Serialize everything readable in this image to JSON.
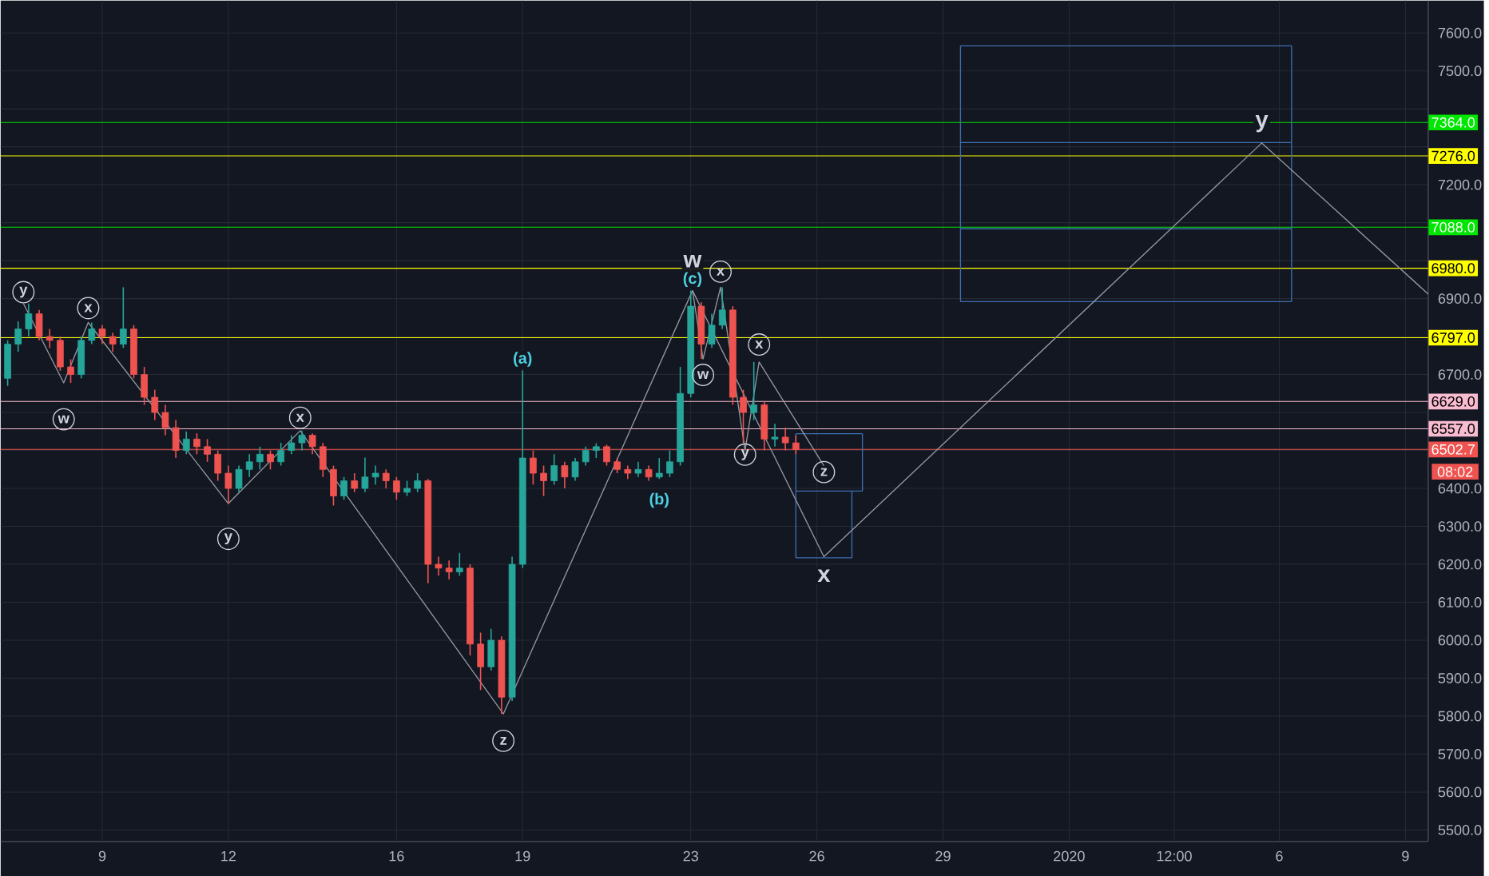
{
  "chart_data": {
    "type": "candlestick",
    "x": [
      "2019-12-06T18:00",
      "2019-12-07T00:00",
      "2019-12-07T06:00",
      "2019-12-07T12:00",
      "2019-12-07T18:00",
      "2019-12-08T00:00",
      "2019-12-08T06:00",
      "2019-12-08T12:00",
      "2019-12-08T18:00",
      "2019-12-09T00:00",
      "2019-12-09T06:00",
      "2019-12-09T12:00",
      "2019-12-09T18:00",
      "2019-12-10T00:00",
      "2019-12-10T06:00",
      "2019-12-10T12:00",
      "2019-12-10T18:00",
      "2019-12-11T00:00",
      "2019-12-11T06:00",
      "2019-12-11T12:00",
      "2019-12-11T18:00",
      "2019-12-12T00:00",
      "2019-12-12T06:00",
      "2019-12-12T12:00",
      "2019-12-12T18:00",
      "2019-12-13T00:00",
      "2019-12-13T06:00",
      "2019-12-13T12:00",
      "2019-12-13T18:00",
      "2019-12-14T00:00",
      "2019-12-14T06:00",
      "2019-12-14T12:00",
      "2019-12-14T18:00",
      "2019-12-15T00:00",
      "2019-12-15T06:00",
      "2019-12-15T12:00",
      "2019-12-15T18:00",
      "2019-12-16T00:00",
      "2019-12-16T06:00",
      "2019-12-16T12:00",
      "2019-12-16T18:00",
      "2019-12-17T00:00",
      "2019-12-17T06:00",
      "2019-12-17T12:00",
      "2019-12-17T18:00",
      "2019-12-18T00:00",
      "2019-12-18T06:00",
      "2019-12-18T12:00",
      "2019-12-18T18:00",
      "2019-12-19T00:00",
      "2019-12-19T06:00",
      "2019-12-19T12:00",
      "2019-12-19T18:00",
      "2019-12-20T00:00",
      "2019-12-20T06:00",
      "2019-12-20T12:00",
      "2019-12-20T18:00",
      "2019-12-21T00:00",
      "2019-12-21T06:00",
      "2019-12-21T12:00",
      "2019-12-21T18:00",
      "2019-12-22T00:00",
      "2019-12-22T06:00",
      "2019-12-22T12:00",
      "2019-12-22T18:00",
      "2019-12-23T00:00",
      "2019-12-23T06:00",
      "2019-12-23T12:00",
      "2019-12-23T18:00",
      "2019-12-24T00:00",
      "2019-12-24T06:00",
      "2019-12-24T12:00",
      "2019-12-24T18:00",
      "2019-12-25T00:00",
      "2019-12-25T06:00",
      "2019-12-25T12:00"
    ],
    "ohlc": [
      [
        6690,
        6790,
        6670,
        6780
      ],
      [
        6780,
        6840,
        6760,
        6820
      ],
      [
        6820,
        6887,
        6800,
        6860
      ],
      [
        6860,
        6870,
        6790,
        6800
      ],
      [
        6800,
        6820,
        6770,
        6790
      ],
      [
        6790,
        6800,
        6710,
        6720
      ],
      [
        6720,
        6740,
        6678,
        6700
      ],
      [
        6700,
        6800,
        6690,
        6790
      ],
      [
        6790,
        6837,
        6780,
        6820
      ],
      [
        6820,
        6830,
        6780,
        6800
      ],
      [
        6800,
        6810,
        6760,
        6780
      ],
      [
        6780,
        6930,
        6770,
        6820
      ],
      [
        6820,
        6830,
        6690,
        6700
      ],
      [
        6700,
        6720,
        6620,
        6640
      ],
      [
        6640,
        6660,
        6580,
        6600
      ],
      [
        6600,
        6620,
        6540,
        6560
      ],
      [
        6560,
        6580,
        6480,
        6500
      ],
      [
        6500,
        6550,
        6490,
        6530
      ],
      [
        6530,
        6545,
        6490,
        6510
      ],
      [
        6510,
        6530,
        6470,
        6490
      ],
      [
        6490,
        6500,
        6420,
        6440
      ],
      [
        6440,
        6460,
        6360,
        6400
      ],
      [
        6400,
        6460,
        6390,
        6450
      ],
      [
        6450,
        6490,
        6430,
        6470
      ],
      [
        6470,
        6510,
        6450,
        6490
      ],
      [
        6490,
        6500,
        6450,
        6470
      ],
      [
        6470,
        6520,
        6460,
        6500
      ],
      [
        6500,
        6540,
        6490,
        6520
      ],
      [
        6520,
        6552,
        6500,
        6540
      ],
      [
        6540,
        6545,
        6490,
        6510
      ],
      [
        6510,
        6520,
        6430,
        6450
      ],
      [
        6450,
        6460,
        6355,
        6380
      ],
      [
        6380,
        6430,
        6370,
        6420
      ],
      [
        6420,
        6440,
        6390,
        6400
      ],
      [
        6400,
        6481,
        6390,
        6430
      ],
      [
        6430,
        6460,
        6410,
        6440
      ],
      [
        6440,
        6450,
        6400,
        6420
      ],
      [
        6420,
        6430,
        6370,
        6390
      ],
      [
        6390,
        6420,
        6380,
        6400
      ],
      [
        6400,
        6440,
        6390,
        6420
      ],
      [
        6420,
        6425,
        6150,
        6200
      ],
      [
        6200,
        6220,
        6170,
        6190
      ],
      [
        6190,
        6210,
        6160,
        6180
      ],
      [
        6180,
        6230,
        6170,
        6190
      ],
      [
        6190,
        6200,
        5960,
        5990
      ],
      [
        5990,
        6020,
        5869,
        5930
      ],
      [
        5930,
        6030,
        5920,
        6000
      ],
      [
        6000,
        6010,
        5806,
        5850
      ],
      [
        5850,
        6220,
        5840,
        6200
      ],
      [
        6200,
        6711,
        6190,
        6480
      ],
      [
        6480,
        6500,
        6410,
        6440
      ],
      [
        6440,
        6460,
        6380,
        6420
      ],
      [
        6420,
        6490,
        6410,
        6460
      ],
      [
        6460,
        6470,
        6400,
        6430
      ],
      [
        6430,
        6480,
        6420,
        6470
      ],
      [
        6470,
        6510,
        6460,
        6500
      ],
      [
        6500,
        6519,
        6480,
        6510
      ],
      [
        6510,
        6515,
        6460,
        6470
      ],
      [
        6470,
        6480,
        6440,
        6450
      ],
      [
        6450,
        6460,
        6425,
        6440
      ],
      [
        6440,
        6470,
        6430,
        6450
      ],
      [
        6450,
        6460,
        6420,
        6430
      ],
      [
        6430,
        6480,
        6425,
        6440
      ],
      [
        6440,
        6500,
        6430,
        6470
      ],
      [
        6470,
        6720,
        6460,
        6650
      ],
      [
        6650,
        6921,
        6640,
        6880
      ],
      [
        6880,
        6890,
        6741,
        6780
      ],
      [
        6780,
        6860,
        6770,
        6830
      ],
      [
        6830,
        6930,
        6820,
        6870
      ],
      [
        6870,
        6880,
        6620,
        6640
      ],
      [
        6640,
        6660,
        6520,
        6600
      ],
      [
        6600,
        6733,
        6580,
        6620
      ],
      [
        6620,
        6630,
        6500,
        6530
      ],
      [
        6530,
        6570,
        6510,
        6535
      ],
      [
        6535,
        6560,
        6500,
        6520
      ],
      [
        6520,
        6540,
        6490,
        6502.7
      ]
    ],
    "colors": [
      "#26a69a",
      "#26a69a",
      "#26a69a",
      "#ef5350",
      "#ef5350",
      "#ef5350",
      "#ef5350",
      "#26a69a",
      "#26a69a",
      "#ef5350",
      "#ef5350",
      "#26a69a",
      "#ef5350",
      "#ef5350",
      "#ef5350",
      "#ef5350",
      "#ef5350",
      "#26a69a",
      "#ef5350",
      "#ef5350",
      "#ef5350",
      "#ef5350",
      "#26a69a",
      "#26a69a",
      "#26a69a",
      "#ef5350",
      "#26a69a",
      "#26a69a",
      "#26a69a",
      "#ef5350",
      "#ef5350",
      "#ef5350",
      "#26a69a",
      "#ef5350",
      "#26a69a",
      "#26a69a",
      "#ef5350",
      "#ef5350",
      "#26a69a",
      "#26a69a",
      "#ef5350",
      "#ef5350",
      "#ef5350",
      "#26a69a",
      "#ef5350",
      "#ef5350",
      "#26a69a",
      "#ef5350",
      "#26a69a",
      "#26a69a",
      "#ef5350",
      "#ef5350",
      "#26a69a",
      "#ef5350",
      "#26a69a",
      "#26a69a",
      "#26a69a",
      "#ef5350",
      "#ef5350",
      "#ef5350",
      "#26a69a",
      "#ef5350",
      "#26a69a",
      "#26a69a",
      "#26a69a",
      "#26a69a",
      "#ef5350",
      "#26a69a",
      "#26a69a",
      "#ef5350",
      "#ef5350",
      "#26a69a",
      "#ef5350",
      "#26a69a",
      "#ef5350",
      "#ef5350"
    ],
    "series": [
      {
        "type": "line",
        "color": "#9598a1",
        "x": [
          "2019-12-07T03:00",
          "2019-12-08T02:00",
          "2019-12-08T16:00",
          "2019-12-12T00:00",
          "2019-12-13T17:00",
          "2019-12-18T13:00",
          "2019-12-23T01:00",
          "2019-12-26T04:00",
          "2020-01-05T14:00",
          "2020-01-09T13:00"
        ],
        "values": [
          6887,
          6678,
          6837,
          6360,
          6552,
          5806,
          6921,
          6220,
          7310,
          6912
        ]
      },
      {
        "type": "line",
        "color": "#9598a1",
        "x": [
          "2019-12-23T01:00",
          "2019-12-23T07:00",
          "2019-12-23T17:00",
          "2019-12-24T07:00",
          "2019-12-24T15:00",
          "2019-12-26T04:00"
        ],
        "values": [
          6921,
          6741,
          6930,
          6500,
          6733,
          6460
        ]
      },
      {
        "type": "line",
        "color": "#3d6fb0",
        "x": [
          "2019-12-29T10:00",
          "2020-01-06T07:00"
        ],
        "values": [
          7566,
          7566
        ]
      },
      {
        "type": "line",
        "color": "#3d6fb0",
        "x": [
          "2019-12-29T10:00",
          "2020-01-06T07:00"
        ],
        "values": [
          7311,
          7311
        ]
      },
      {
        "type": "line",
        "color": "#3d6fb0",
        "x": [
          "2019-12-29T10:00",
          "2020-01-06T07:00"
        ],
        "values": [
          7084,
          7084
        ]
      },
      {
        "type": "line",
        "color": "#3d6fb0",
        "x": [
          "2019-12-29T10:00",
          "2020-01-06T07:00"
        ],
        "values": [
          6892,
          6892
        ]
      },
      {
        "type": "line",
        "color": "#3d6fb0",
        "x": [
          "2019-12-25T12:00",
          "2019-12-27T02:00"
        ],
        "values": [
          6544,
          6544
        ]
      },
      {
        "type": "line",
        "color": "#3d6fb0",
        "x": [
          "2019-12-25T12:00",
          "2019-12-27T02:00"
        ],
        "values": [
          6393,
          6393
        ]
      },
      {
        "type": "line",
        "color": "#3d6fb0",
        "x": [
          "2019-12-25T12:00",
          "2019-12-26T20:00"
        ],
        "values": [
          6217,
          6217
        ]
      },
      {
        "type": "line",
        "color": "#3d6fb0",
        "x": [
          "2019-12-29T10:00",
          "2019-12-29T10:00"
        ],
        "values": [
          6892,
          7566
        ]
      },
      {
        "type": "line",
        "color": "#3d6fb0",
        "x": [
          "2020-01-06T07:00",
          "2020-01-06T07:00"
        ],
        "values": [
          6892,
          7566
        ]
      },
      {
        "type": "line",
        "color": "#3d6fb0",
        "x": [
          "2019-12-25T12:00",
          "2019-12-25T12:00"
        ],
        "values": [
          6217,
          6544
        ]
      },
      {
        "type": "line",
        "color": "#3d6fb0",
        "x": [
          "2019-12-27T02:00",
          "2019-12-27T02:00"
        ],
        "values": [
          6393,
          6544
        ]
      },
      {
        "type": "line",
        "color": "#3d6fb0",
        "x": [
          "2019-12-26T20:00",
          "2019-12-26T20:00"
        ],
        "values": [
          6217,
          6393
        ]
      }
    ],
    "xlim": [
      "2019-12-06T14:00",
      "2020-01-09T13:00"
    ],
    "ylim": [
      5470,
      7685
    ],
    "xticks": [
      {
        "value": "2019-12-09",
        "label": "9"
      },
      {
        "value": "2019-12-12",
        "label": "12"
      },
      {
        "value": "2019-12-16",
        "label": "16"
      },
      {
        "value": "2019-12-19",
        "label": "19"
      },
      {
        "value": "2019-12-23",
        "label": "23"
      },
      {
        "value": "2019-12-26",
        "label": "26"
      },
      {
        "value": "2019-12-29",
        "label": "29"
      },
      {
        "value": "2020-01-01",
        "label": "2020"
      },
      {
        "value": "2020-01-03T12:00",
        "label": "12:00"
      },
      {
        "value": "2020-01-06",
        "label": "6"
      },
      {
        "value": "2020-01-09",
        "label": "9"
      }
    ],
    "yticks": [
      {
        "value": 5500,
        "label": "5500.0"
      },
      {
        "value": 5600,
        "label": "5600.0"
      },
      {
        "value": 5700,
        "label": "5700.0"
      },
      {
        "value": 5800,
        "label": "5800.0"
      },
      {
        "value": 5900,
        "label": "5900.0"
      },
      {
        "value": 6000,
        "label": "6000.0"
      },
      {
        "value": 6100,
        "label": "6100.0"
      },
      {
        "value": 6200,
        "label": "6200.0"
      },
      {
        "value": 6300,
        "label": "6300.0"
      },
      {
        "value": 6400,
        "label": "6400.0"
      },
      {
        "value": 6500,
        "label": null
      },
      {
        "value": 6600,
        "label": null
      },
      {
        "value": 6700,
        "label": "6700.0"
      },
      {
        "value": 6800,
        "label": null
      },
      {
        "value": 6900,
        "label": "6900.0"
      },
      {
        "value": 7000,
        "label": null
      },
      {
        "value": 7100,
        "label": null
      },
      {
        "value": 7200,
        "label": "7200.0"
      },
      {
        "value": 7300,
        "label": null
      },
      {
        "value": 7400,
        "label": null
      },
      {
        "value": 7500,
        "label": "7500.0"
      },
      {
        "value": 7600,
        "label": "7600.0"
      }
    ],
    "grid": true,
    "ref_lines": [
      {
        "axis": "y",
        "value": 7364,
        "label": "7364.0",
        "color": "#00e600"
      },
      {
        "axis": "y",
        "value": 7276,
        "label": "7276.0",
        "color": "#ffff00"
      },
      {
        "axis": "y",
        "value": 7088,
        "label": "7088.0",
        "color": "#00e600"
      },
      {
        "axis": "y",
        "value": 6980,
        "label": "6980.0",
        "color": "#ffff00"
      },
      {
        "axis": "y",
        "value": 6797,
        "label": "6797.0",
        "color": "#ffff00"
      },
      {
        "axis": "y",
        "value": 6629,
        "label": "6629.0",
        "color": "#f8bbd0"
      },
      {
        "axis": "y",
        "value": 6557,
        "label": "6557.0",
        "color": "#f8bbd0"
      },
      {
        "axis": "y",
        "value": 6502.7,
        "label": "6502.7",
        "color": "#ef5350"
      }
    ],
    "annotations": [
      {
        "text": "y",
        "x": "2019-12-07T03:00",
        "y": 6917
      },
      {
        "text": "w",
        "x": "2019-12-08T02:00",
        "y": 6582
      },
      {
        "text": "x",
        "x": "2019-12-08T16:00",
        "y": 6875
      },
      {
        "text": "y",
        "x": "2019-12-12T00:00",
        "y": 6267
      },
      {
        "text": "x",
        "x": "2019-12-13T17:00",
        "y": 6586
      },
      {
        "text": "z",
        "x": "2019-12-18T13:00",
        "y": 5735
      },
      {
        "text": "w",
        "x": "2019-12-23T07:00",
        "y": 6699
      },
      {
        "text": "x",
        "x": "2019-12-23T17:00",
        "y": 6971
      },
      {
        "text": "y",
        "x": "2019-12-24T07:00",
        "y": 6489
      },
      {
        "text": "x",
        "x": "2019-12-24T15:00",
        "y": 6779
      },
      {
        "text": "z",
        "x": "2019-12-26T04:00",
        "y": 6443
      },
      {
        "text": "(a)",
        "x": "2019-12-19T00:00",
        "y": 6711
      },
      {
        "text": "(b)",
        "x": "2019-12-22T06:00",
        "y": 6420
      },
      {
        "text": "(c)",
        "x": "2019-12-23T01:00",
        "y": 6921
      },
      {
        "text": "w",
        "x": "2019-12-23T01:00",
        "y": 6921
      },
      {
        "text": "x",
        "x": "2019-12-26T04:00",
        "y": 6220
      },
      {
        "text": "y",
        "x": "2020-01-05T14:00",
        "y": 7361
      },
      "08:02"
    ]
  }
}
